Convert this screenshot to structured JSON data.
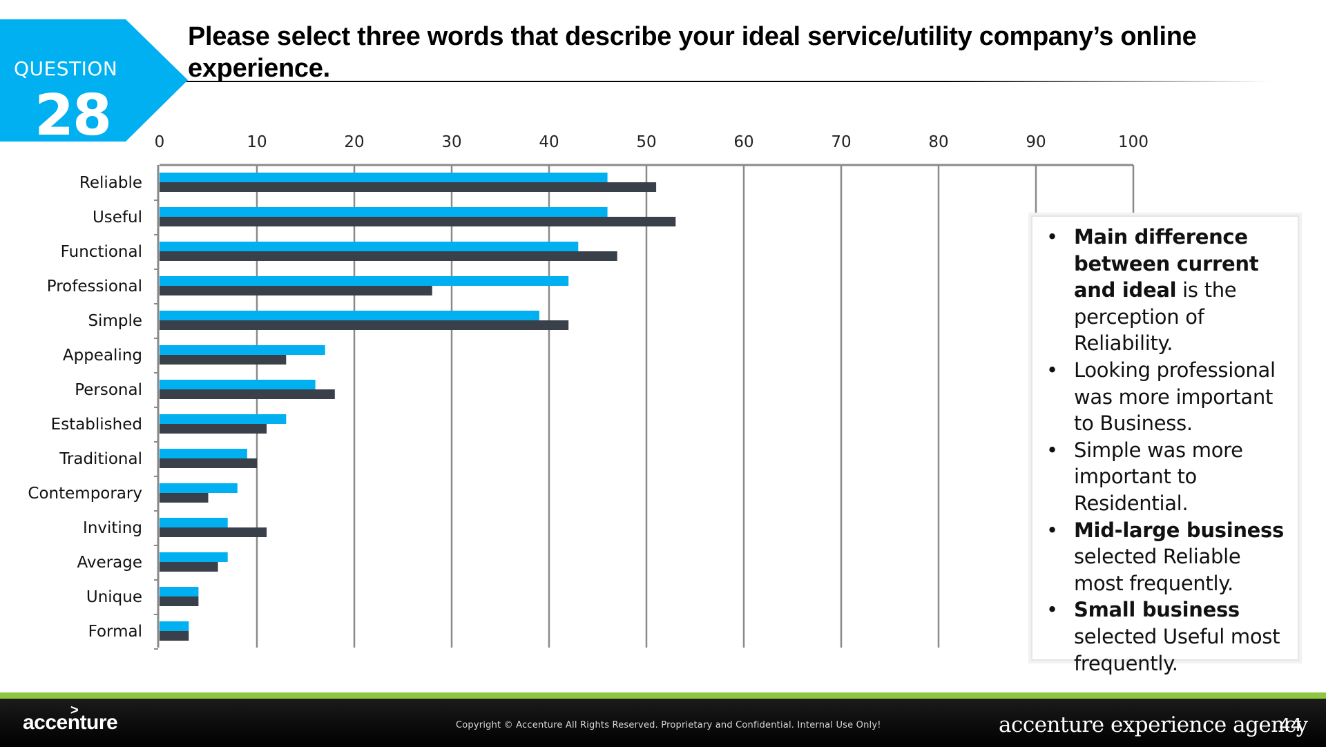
{
  "badge": {
    "label": "QUESTION",
    "number": "28",
    "color": "#00b0f0"
  },
  "title": "Please select three words that describe your ideal service/utility company’s online experience.",
  "chart_data": {
    "type": "bar",
    "orientation": "horizontal",
    "categories": [
      "Reliable",
      "Useful",
      "Functional",
      "Professional",
      "Simple",
      "Appealing",
      "Personal",
      "Established",
      "Traditional",
      "Contemporary",
      "Inviting",
      "Average",
      "Unique",
      "Formal"
    ],
    "series": [
      {
        "color": "#00b0f0",
        "values": [
          46,
          46,
          43,
          42,
          39,
          17,
          16,
          13,
          9,
          8,
          7,
          7,
          4,
          3
        ]
      },
      {
        "color": "#3a4049",
        "values": [
          51,
          53,
          47,
          28,
          42,
          13,
          18,
          11,
          10,
          5,
          11,
          6,
          4,
          3
        ]
      }
    ],
    "xlim": [
      0,
      100
    ],
    "xticks": [
      "0",
      "10",
      "20",
      "30",
      "40",
      "50",
      "60",
      "70",
      "80",
      "90",
      "100"
    ],
    "grid": "vertical",
    "axis_position": "top"
  },
  "insights": [
    {
      "bold": "Main difference between current and ideal",
      "text": " is the perception of Reliability."
    },
    {
      "bold": "",
      "text": "Looking professional was more important to Business."
    },
    {
      "bold": "",
      "text": "Simple was more important to Residential."
    },
    {
      "bold": "Mid-large business",
      "text": " selected Reliable most frequently."
    },
    {
      "bold": "Small business",
      "text": " selected Useful most frequently."
    }
  ],
  "footer": {
    "logo": "accenture",
    "copyright": "Copyright © Accenture All Rights Reserved. Proprietary and Confidential. Internal Use Only!",
    "agency": "accenture experience agency",
    "page": "44",
    "accent_color": "#8dc63f"
  }
}
